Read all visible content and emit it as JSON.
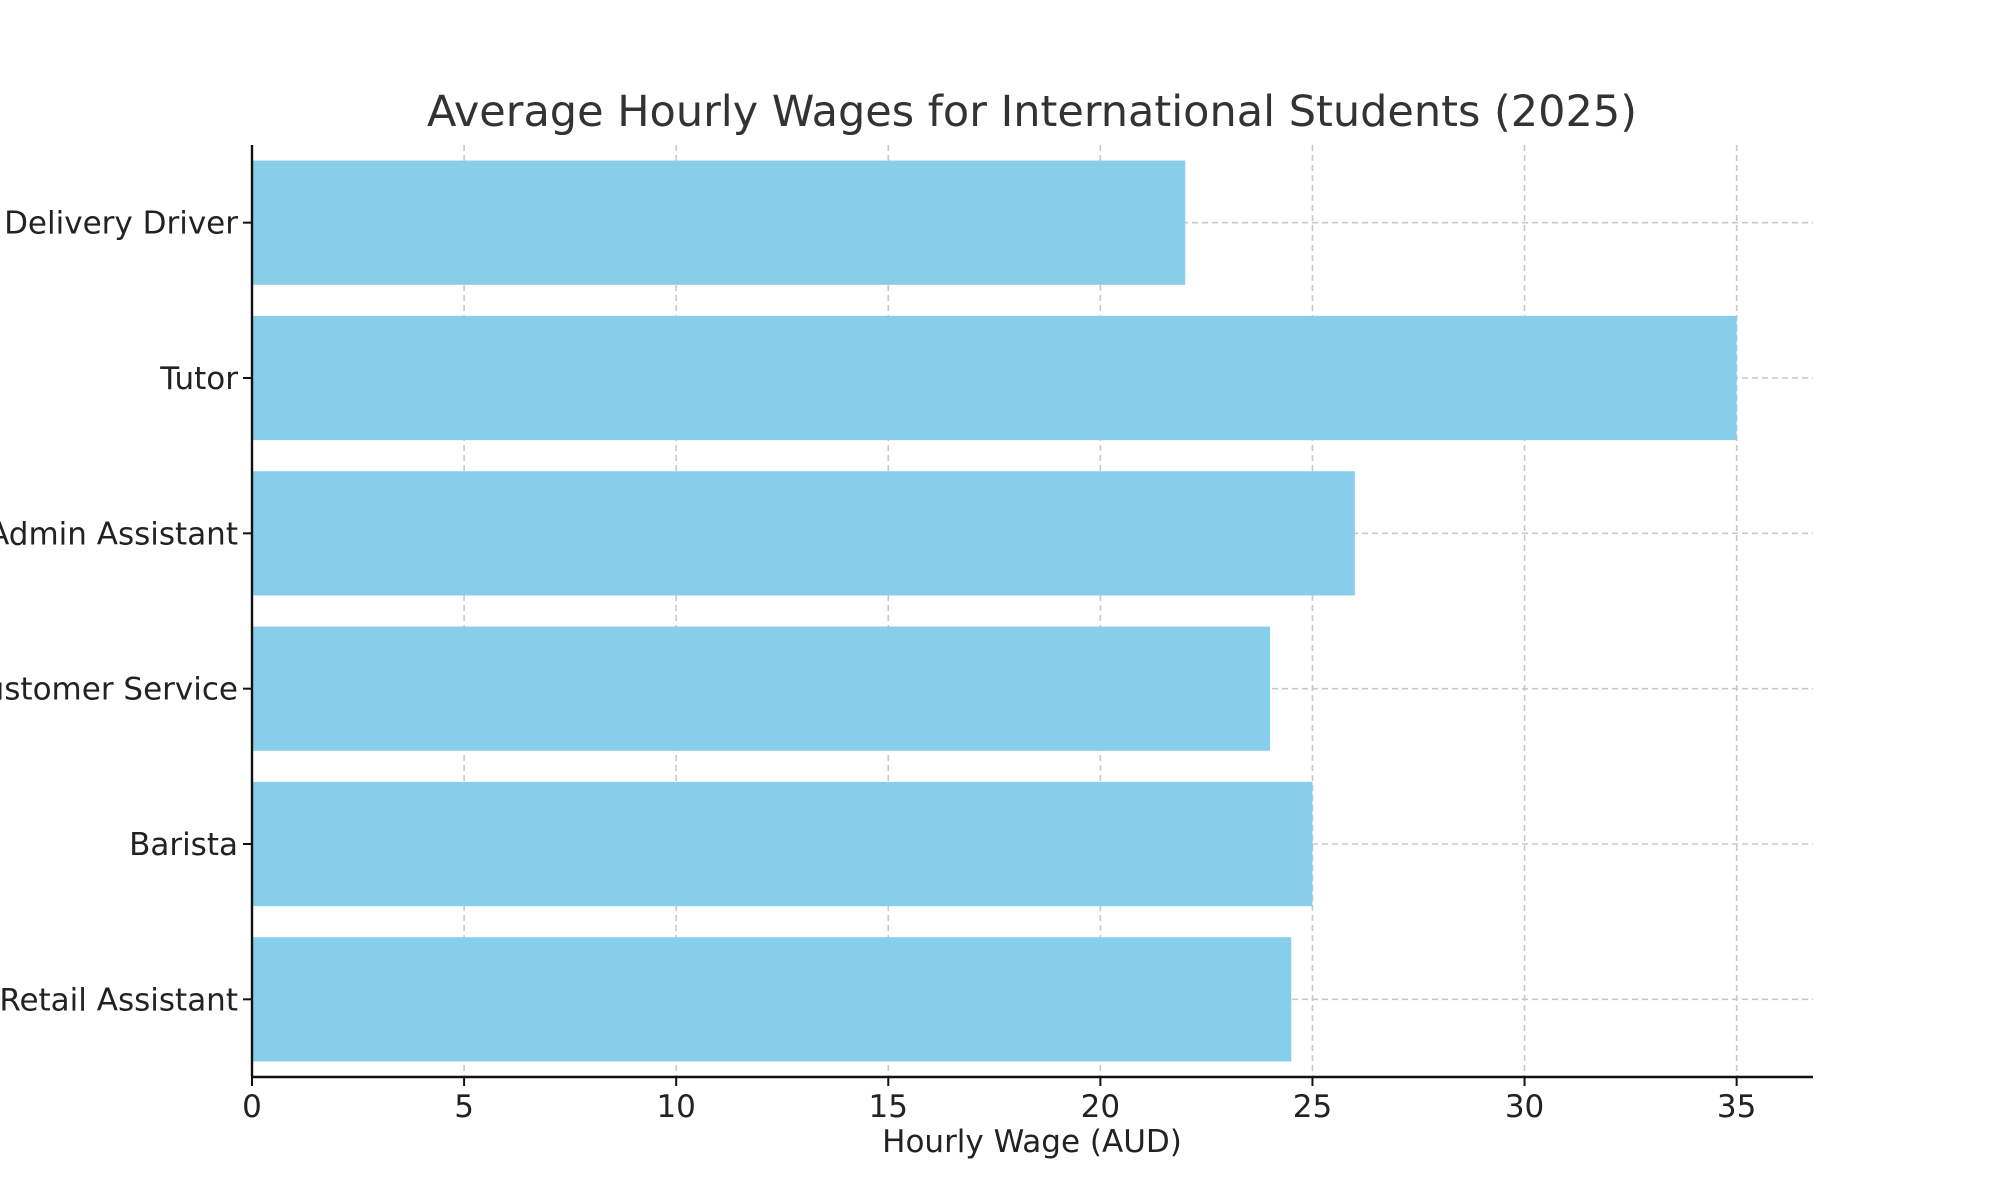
{
  "chart_data": {
    "type": "bar",
    "orientation": "horizontal",
    "title": "Average Hourly Wages for International Students (2025)",
    "xlabel": "Hourly Wage (AUD)",
    "ylabel": "",
    "categories": [
      "Retail Assistant",
      "Barista",
      "Customer Service",
      "Admin Assistant",
      "Tutor",
      "Delivery Driver"
    ],
    "values": [
      24.5,
      25,
      24,
      26,
      35,
      22
    ],
    "xlim": [
      0,
      36.8
    ],
    "xticks": [
      0,
      5,
      10,
      15,
      20,
      25,
      30,
      35
    ],
    "grid": true,
    "legend": "none",
    "bar_color": "#87CEEB"
  }
}
